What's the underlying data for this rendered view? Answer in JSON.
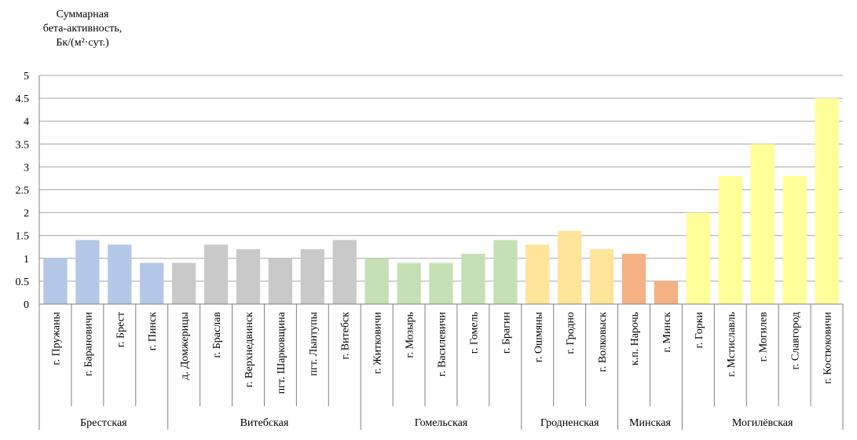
{
  "chart_data": {
    "type": "bar",
    "ylabel_lines": [
      "Суммарная",
      "бета-активность,",
      "Бк/(м²·сут.)"
    ],
    "ylim": [
      0,
      5
    ],
    "yticks": [
      "0",
      "0.5",
      "1",
      "1.5",
      "2",
      "2.5",
      "3",
      "3.5",
      "4",
      "4.5",
      "5"
    ],
    "grid": true,
    "categories": [
      "г. Пружаны",
      "г. Барановичи",
      "г. Брест",
      "г. Пинск",
      "д. Домжерицы",
      "г. Браслав",
      "г. Верхнедвинск",
      "пгт. Шарковщина",
      "пгт. Лынтупы",
      "г. Витебск",
      "г. Житковичи",
      "г. Мозырь",
      "г. Василевичи",
      "г. Гомель",
      "г. Брагин",
      "г. Ошмяны",
      "г. Гродно",
      "г. Волковыск",
      "к.п. Нарочь",
      "г. Минск",
      "г. Горки",
      "г. Мстиславль",
      "г. Могилев",
      "г. Славгород",
      "г. Костюковичи"
    ],
    "values": [
      1.0,
      1.4,
      1.3,
      0.9,
      0.9,
      1.3,
      1.2,
      1.0,
      1.2,
      1.4,
      1.0,
      0.9,
      0.9,
      1.1,
      1.4,
      1.3,
      1.6,
      1.2,
      1.1,
      0.5,
      2.0,
      2.8,
      3.5,
      2.8,
      4.5
    ],
    "groups": [
      {
        "name": "Брестская",
        "count": 4,
        "color": "#b4c7e7"
      },
      {
        "name": "Витебская",
        "count": 6,
        "color": "#c9c9c9"
      },
      {
        "name": "Гомельская",
        "count": 5,
        "color": "#c5e0b4"
      },
      {
        "name": "Гродненская",
        "count": 3,
        "color": "#fee599"
      },
      {
        "name": "Минская",
        "count": 2,
        "color": "#f4b183"
      },
      {
        "name": "Могилёвская",
        "count": 5,
        "color": "#ffff99"
      }
    ]
  }
}
